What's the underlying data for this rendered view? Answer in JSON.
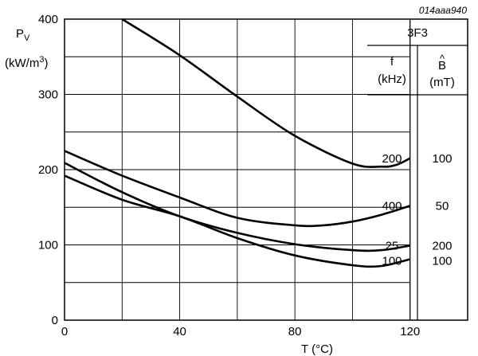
{
  "figure_id": "014aaa940",
  "chart_data": {
    "type": "line",
    "title": "",
    "xlabel_pre": "T (",
    "xlabel_unit": "°C",
    "xlabel_post": ")",
    "ylabel_main": "P",
    "ylabel_sub": "V",
    "ylabel_unit_pre": "(kW/m",
    "ylabel_unit_sup": "3",
    "ylabel_unit_post": ")",
    "xlim": [
      0,
      140
    ],
    "ylim": [
      0,
      400
    ],
    "x_ticks": [
      0,
      40,
      80,
      120
    ],
    "y_ticks": [
      0,
      100,
      200,
      300,
      400
    ],
    "table": {
      "material": "3F3",
      "col1_header": "f",
      "col1_unit": "(kHz)",
      "col2_hat": "^",
      "col2_header": "B",
      "col2_unit": "(mT)"
    },
    "series": [
      {
        "f": "200",
        "B": "100",
        "x": [
          20,
          40,
          60,
          80,
          100,
          110,
          115,
          120
        ],
        "y": [
          400,
          352,
          297,
          245,
          208,
          204,
          206,
          215
        ]
      },
      {
        "f": "400",
        "B": "50",
        "x": [
          0,
          20,
          40,
          60,
          80,
          90,
          100,
          110,
          120
        ],
        "y": [
          225,
          192,
          163,
          136,
          126,
          126,
          131,
          140,
          152
        ]
      },
      {
        "f": "25",
        "B": "200",
        "x": [
          0,
          20,
          40,
          60,
          80,
          100,
          110,
          120
        ],
        "y": [
          209,
          170,
          138,
          116,
          101,
          93,
          93,
          99
        ]
      },
      {
        "f": "100",
        "B": "100",
        "x": [
          0,
          20,
          40,
          60,
          80,
          100,
          110,
          120
        ],
        "y": [
          192,
          160,
          138,
          109,
          86,
          73,
          72,
          81
        ]
      }
    ]
  }
}
